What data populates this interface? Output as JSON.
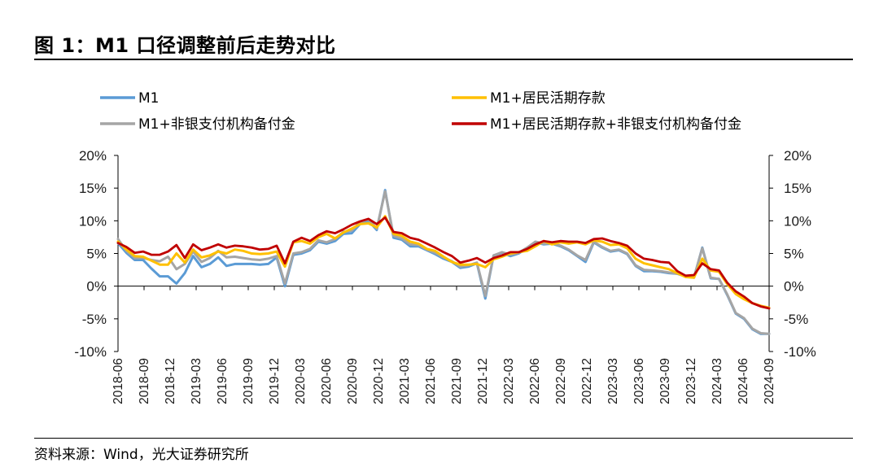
{
  "figure": {
    "title": "图 1：M1 口径调整前后走势对比",
    "source": "资料来源：Wind，光大证券研究所"
  },
  "chart_data": {
    "type": "line",
    "xlabel": "",
    "ylabel": "",
    "ylim": [
      -10,
      20
    ],
    "yticks": [
      "20%",
      "15%",
      "10%",
      "5%",
      "0%",
      "-5%",
      "-10%"
    ],
    "y2ticks": [
      "20%",
      "15%",
      "10%",
      "5%",
      "0%",
      "-5%",
      "-10%"
    ],
    "xticks": [
      "2018-06",
      "2018-09",
      "2018-12",
      "2019-03",
      "2019-06",
      "2019-09",
      "2019-12",
      "2020-03",
      "2020-06",
      "2020-09",
      "2020-12",
      "2021-03",
      "2021-06",
      "2021-09",
      "2021-12",
      "2022-03",
      "2022-06",
      "2022-09",
      "2022-12",
      "2023-03",
      "2023-06",
      "2023-09",
      "2023-12",
      "2024-03",
      "2024-06",
      "2024-09"
    ],
    "x_start": "2018-06",
    "x_end": "2024-09",
    "legend": [
      "M1",
      "M1+居民活期存款",
      "M1+非银支付机构备付金",
      "M1+居民活期存款+非银支付机构备付金"
    ],
    "series": [
      {
        "name": "M1",
        "color": "#5b9bd5",
        "values": [
          6.6,
          5.1,
          4.0,
          4.0,
          2.7,
          1.5,
          1.5,
          0.4,
          2.0,
          4.6,
          2.9,
          3.4,
          4.4,
          3.1,
          3.4,
          3.4,
          3.4,
          3.3,
          3.4,
          4.4,
          0.0,
          4.8,
          5.0,
          5.5,
          6.8,
          6.5,
          6.9,
          8.0,
          8.1,
          9.5,
          10.0,
          8.6,
          14.7,
          7.4,
          7.1,
          6.1,
          6.1,
          5.5,
          4.9,
          4.2,
          3.7,
          2.8,
          3.0,
          3.5,
          -1.9,
          4.7,
          5.1,
          4.6,
          5.0,
          5.8,
          6.7,
          6.4,
          6.5,
          6.1,
          5.5,
          4.6,
          3.7,
          6.7,
          5.9,
          5.3,
          5.5,
          4.9,
          3.1,
          2.3,
          2.3,
          2.2,
          2.0,
          1.9,
          1.5,
          1.3,
          5.9,
          1.2,
          1.1,
          -1.4,
          -4.2,
          -5.0,
          -6.6,
          -7.3,
          -7.3
        ]
      },
      {
        "name": "M1+居民活期存款",
        "color": "#ffc000",
        "values": [
          6.8,
          5.6,
          4.6,
          4.5,
          3.9,
          3.3,
          3.3,
          5.0,
          3.6,
          5.6,
          4.4,
          4.7,
          5.3,
          5.0,
          5.6,
          5.4,
          5.0,
          4.9,
          5.0,
          5.3,
          3.0,
          6.7,
          6.9,
          6.5,
          7.5,
          8.0,
          7.3,
          8.2,
          8.8,
          9.5,
          9.6,
          9.0,
          10.7,
          8.0,
          7.7,
          6.8,
          6.5,
          5.7,
          5.4,
          4.5,
          3.7,
          3.3,
          3.3,
          3.4,
          2.9,
          4.1,
          4.5,
          5.0,
          5.2,
          5.4,
          6.1,
          6.9,
          6.4,
          6.7,
          6.5,
          6.7,
          6.4,
          7.0,
          6.8,
          6.3,
          6.4,
          5.8,
          4.2,
          3.5,
          3.2,
          2.9,
          2.6,
          2.0,
          1.4,
          1.3,
          4.2,
          2.4,
          2.2,
          0.3,
          -1.2,
          -2.0,
          -2.6,
          -3.0,
          -3.3
        ]
      },
      {
        "name": "M1+非银支付机构备付金",
        "color": "#a5a5a5",
        "values": [
          7.2,
          5.4,
          4.3,
          4.3,
          4.0,
          3.8,
          4.5,
          2.6,
          3.4,
          5.3,
          3.7,
          4.3,
          5.4,
          4.4,
          4.5,
          4.3,
          4.1,
          4.0,
          4.2,
          4.6,
          0.4,
          5.0,
          5.2,
          5.7,
          7.0,
          6.7,
          7.2,
          8.3,
          8.5,
          9.8,
          10.2,
          8.8,
          14.5,
          7.7,
          7.3,
          6.4,
          6.3,
          5.6,
          5.1,
          4.4,
          3.8,
          3.0,
          3.2,
          3.6,
          -1.5,
          4.7,
          5.2,
          4.8,
          5.1,
          5.9,
          6.8,
          6.5,
          6.6,
          6.2,
          5.6,
          4.7,
          4.0,
          6.8,
          6.0,
          5.4,
          5.6,
          5.0,
          3.2,
          2.5,
          2.4,
          2.3,
          2.1,
          1.9,
          1.6,
          1.4,
          5.8,
          1.3,
          1.1,
          -1.3,
          -4.1,
          -4.9,
          -6.5,
          -7.2,
          -7.3
        ]
      },
      {
        "name": "M1+居民活期存款+非银支付机构备付金",
        "color": "#c00000",
        "values": [
          6.6,
          6.0,
          5.1,
          5.3,
          4.8,
          4.8,
          5.3,
          6.3,
          4.3,
          6.4,
          5.5,
          5.9,
          6.4,
          5.9,
          6.2,
          6.1,
          5.9,
          5.6,
          5.7,
          6.2,
          3.5,
          6.8,
          7.4,
          6.9,
          7.8,
          8.4,
          8.1,
          8.7,
          9.4,
          9.9,
          10.3,
          9.5,
          10.5,
          8.3,
          8.1,
          7.4,
          7.1,
          6.5,
          5.9,
          5.2,
          4.6,
          3.6,
          3.9,
          4.3,
          3.6,
          4.3,
          4.7,
          5.2,
          5.2,
          5.7,
          6.4,
          6.9,
          6.7,
          6.9,
          6.8,
          6.8,
          6.6,
          7.2,
          7.3,
          6.9,
          6.6,
          6.2,
          5.0,
          4.2,
          4.0,
          3.7,
          3.6,
          2.3,
          1.6,
          1.7,
          3.5,
          2.6,
          2.4,
          0.5,
          -0.8,
          -1.6,
          -2.6,
          -3.1,
          -3.4
        ]
      }
    ]
  }
}
